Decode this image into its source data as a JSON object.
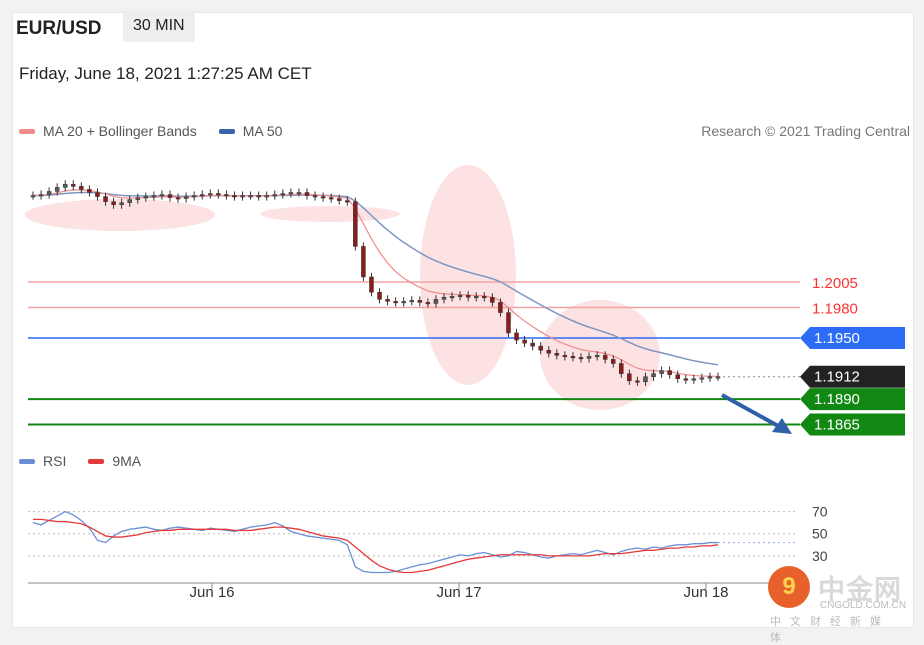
{
  "header": {
    "symbol": "EUR/USD",
    "timeframe": "30 MIN",
    "datetime": "Friday, June 18, 2021 1:27:25 AM CET"
  },
  "legend": {
    "ma20": "MA 20 + Bollinger Bands",
    "ma50": "MA 50",
    "ma20_color": "#f28b8b",
    "ma50_color": "#3a64a8"
  },
  "credit": "Research © 2021 Trading Central",
  "rsi_legend": {
    "rsi": "RSI",
    "ma9": "9MA",
    "rsi_color": "#6b8fd6",
    "ma9_color": "#e33b3b"
  },
  "watermark": {
    "cn": "中金网",
    "url": "CNGOLD.COM.CN",
    "sub": "中文财经新媒体",
    "logo_glyph": "9"
  },
  "chart_data": [
    {
      "type": "candlestick",
      "x_labels": [
        "Jun 16",
        "Jun 17",
        "Jun 18"
      ],
      "ylim": [
        1.184,
        1.212
      ],
      "resistance_levels": [
        {
          "value": 1.2005,
          "label": "1.2005",
          "color": "#ff3333"
        },
        {
          "value": 1.198,
          "label": "1.1980",
          "color": "#ff3333"
        },
        {
          "value": 1.195,
          "label": "1.1950",
          "color": "#2d6df6"
        }
      ],
      "current_price": {
        "value": 1.1912,
        "label": "1.1912",
        "color": "#222222"
      },
      "support_levels": [
        {
          "value": 1.189,
          "label": "1.1890",
          "color": "#118811"
        },
        {
          "value": 1.1865,
          "label": "1.1865",
          "color": "#118811"
        }
      ],
      "close": [
        1.209,
        1.2091,
        1.2094,
        1.2098,
        1.2101,
        1.2099,
        1.2096,
        1.2093,
        1.2089,
        1.2084,
        1.2081,
        1.2083,
        1.2086,
        1.2088,
        1.2089,
        1.209,
        1.2091,
        1.2088,
        1.2087,
        1.2089,
        1.209,
        1.2091,
        1.2092,
        1.2091,
        1.209,
        1.2089,
        1.209,
        1.209,
        1.2089,
        1.209,
        1.2091,
        1.2092,
        1.2093,
        1.2093,
        1.209,
        1.2089,
        1.2088,
        1.2087,
        1.2085,
        1.2084,
        1.204,
        1.201,
        1.1995,
        1.1988,
        1.1986,
        1.1985,
        1.1986,
        1.1987,
        1.1985,
        1.1984,
        1.1988,
        1.199,
        1.1991,
        1.1992,
        1.199,
        1.1991,
        1.199,
        1.1985,
        1.1975,
        1.1955,
        1.1948,
        1.1945,
        1.1942,
        1.1938,
        1.1935,
        1.1933,
        1.1932,
        1.1931,
        1.193,
        1.1932,
        1.1933,
        1.1929,
        1.1925,
        1.1915,
        1.1908,
        1.1907,
        1.1912,
        1.1915,
        1.1918,
        1.1914,
        1.191,
        1.1909,
        1.191,
        1.1911,
        1.1912,
        1.1912
      ]
    },
    {
      "type": "line",
      "title": "RSI",
      "levels": [
        {
          "value": 70,
          "label": "70"
        },
        {
          "value": 50,
          "label": "50"
        },
        {
          "value": 30,
          "label": "30"
        }
      ],
      "ylim": [
        10,
        85
      ],
      "series": [
        {
          "name": "RSI",
          "values": [
            60,
            58,
            62,
            66,
            70,
            67,
            62,
            55,
            44,
            42,
            48,
            52,
            54,
            55,
            56,
            54,
            53,
            55,
            56,
            55,
            54,
            53,
            55,
            54,
            53,
            52,
            54,
            56,
            57,
            58,
            60,
            57,
            52,
            50,
            48,
            47,
            46,
            45,
            44,
            40,
            20,
            16,
            15,
            15,
            15,
            16,
            18,
            20,
            22,
            23,
            25,
            27,
            29,
            31,
            30,
            32,
            33,
            31,
            29,
            30,
            34,
            33,
            31,
            29,
            28,
            30,
            31,
            32,
            31,
            33,
            35,
            33,
            31,
            34,
            36,
            37,
            36,
            38,
            37,
            39,
            40,
            40,
            41,
            41,
            42,
            42
          ]
        },
        {
          "name": "9MA",
          "values": [
            63,
            63,
            62,
            61,
            61,
            60,
            59,
            56,
            52,
            48,
            47,
            47,
            48,
            49,
            51,
            52,
            53,
            53,
            54,
            54,
            54,
            54,
            54,
            54,
            54,
            53,
            53,
            53,
            54,
            55,
            56,
            56,
            55,
            54,
            52,
            50,
            48,
            47,
            46,
            44,
            38,
            32,
            26,
            21,
            18,
            16,
            15,
            15,
            16,
            17,
            19,
            21,
            23,
            25,
            27,
            28,
            29,
            30,
            31,
            31,
            31,
            31,
            31,
            31,
            30,
            30,
            30,
            30,
            30,
            30,
            31,
            32,
            32,
            32,
            33,
            34,
            35,
            35,
            36,
            37,
            37,
            38,
            38,
            39,
            39,
            40
          ]
        }
      ]
    }
  ]
}
